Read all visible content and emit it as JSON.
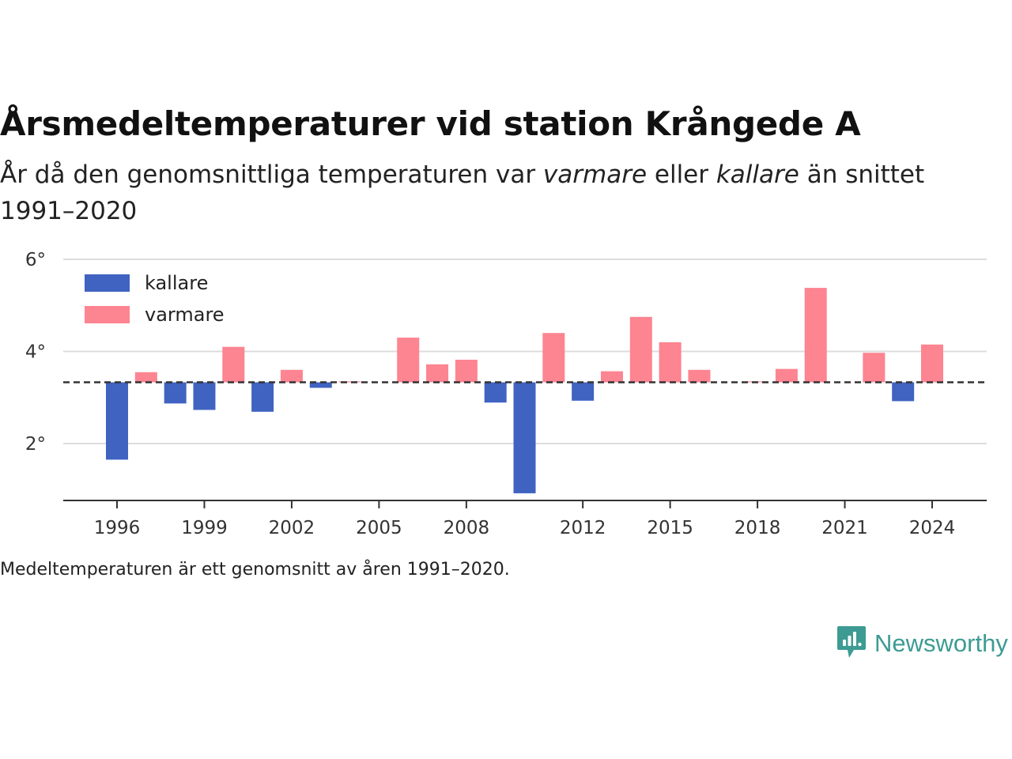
{
  "header": {
    "title": "Årsmedeltemperaturer vid station Krångede A",
    "subtitle_before": "År då den genomsnittliga temperaturen var ",
    "subtitle_warm": "varmare",
    "subtitle_mid": " eller ",
    "subtitle_cold": "kallare",
    "subtitle_after": " än snittet 1991–2020"
  },
  "footnote": "Medeltemperaturen är ett genomsnitt av åren 1991–2020.",
  "brand": {
    "name": "Newsworthy",
    "icon": "newsworthy-logo-icon"
  },
  "colors": {
    "kallare": "#4063c1",
    "varmare": "#fd8491",
    "reference": "#333333",
    "grid": "#dddddd"
  },
  "chart_data": {
    "type": "bar",
    "baseline": 3.33,
    "ylim": [
      0.8,
      6.0
    ],
    "y_ticks": [
      {
        "v": 6,
        "label": "6°"
      },
      {
        "v": 4,
        "label": "4°"
      },
      {
        "v": 2,
        "label": "2°"
      }
    ],
    "x_ticks": [
      1996,
      1999,
      2002,
      2005,
      2008,
      2012,
      2015,
      2018,
      2021,
      2024
    ],
    "xlim": [
      1994.5,
      2026.5
    ],
    "legend": [
      {
        "name": "kallare",
        "key": "kallare"
      },
      {
        "name": "varmare",
        "key": "varmare"
      }
    ],
    "legend_position": "top-left",
    "years": [
      1996,
      1997,
      1998,
      1999,
      2000,
      2001,
      2002,
      2003,
      2004,
      2006,
      2007,
      2008,
      2009,
      2010,
      2011,
      2012,
      2013,
      2014,
      2015,
      2016,
      2018,
      2019,
      2020,
      2022,
      2023,
      2024
    ],
    "values": [
      1.65,
      3.55,
      2.87,
      2.73,
      4.1,
      2.69,
      3.6,
      3.21,
      3.35,
      4.3,
      3.72,
      3.82,
      2.89,
      0.92,
      4.4,
      2.93,
      3.57,
      4.75,
      4.2,
      3.6,
      3.35,
      3.62,
      5.38,
      3.97,
      2.92,
      4.15
    ]
  }
}
